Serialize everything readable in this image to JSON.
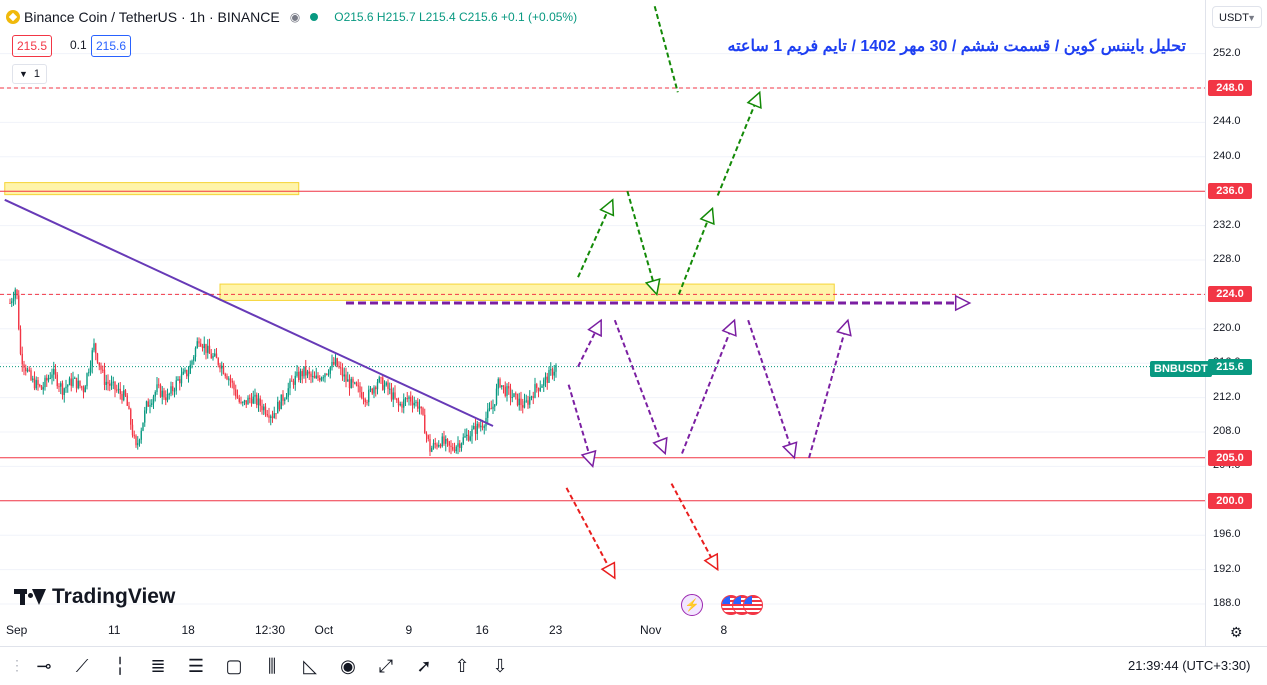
{
  "header": {
    "symbol": "Binance Coin / TetherUS · 1h · BINANCE",
    "ohlc": "O215.6 H215.7 L215.4 C215.6 +0.1 (+0.05%)",
    "sell_price": "215.5",
    "spread": "0.1",
    "buy_price": "215.6",
    "indicator_count": "1",
    "currency_button": "USDT"
  },
  "annotation_title": "تحلیل بایننس کوین / قسمت ششم / 30 مهر 1402 / تایم فریم 1 ساعته",
  "symbol_tag": "BNBUSDT",
  "branding": "TradingView",
  "clock": "21:39:44 (UTC+3:30)",
  "colors": {
    "up": "#089981",
    "down": "#f23645",
    "level_line": "#f23645",
    "zone": "#fff3a0",
    "trendline": "#673ab7",
    "scenario_bull": "#138a07",
    "scenario_main": "#7b1fa2",
    "scenario_bear": "#e91e1e"
  },
  "chart_data": {
    "type": "candlestick",
    "timeframe": "1h",
    "ylim": [
      186,
      254
    ],
    "y_ticks": [
      "252.0",
      "248.0",
      "244.0",
      "240.0",
      "236.0",
      "232.0",
      "228.0",
      "224.0",
      "220.0",
      "216.0",
      "212.0",
      "208.0",
      "204.0",
      "200.0",
      "196.0",
      "192.0",
      "188.0"
    ],
    "x_ticks": [
      "Sep",
      "11",
      "18",
      "12:30",
      "Oct",
      "9",
      "16",
      "23",
      "Nov",
      "8"
    ],
    "x_tick_days": [
      0,
      10,
      17,
      25,
      30,
      38,
      45,
      52,
      61,
      68
    ],
    "price_levels": [
      {
        "label": "248.0",
        "value": 248.0,
        "style": "dashed"
      },
      {
        "label": "236.0",
        "value": 236.0,
        "style": "solid"
      },
      {
        "label": "224.0",
        "value": 224.0,
        "style": "dashed"
      },
      {
        "label": "205.0",
        "value": 205.0,
        "style": "solid"
      },
      {
        "label": "200.0",
        "value": 200.0,
        "style": "solid"
      }
    ],
    "current_price": {
      "label": "215.6",
      "value": 215.6
    },
    "zones": [
      {
        "x0": -0.5,
        "x1": 27.5,
        "y0": 235.6,
        "y1": 237.0
      },
      {
        "x0": 20.0,
        "x1": 78.5,
        "y0": 223.3,
        "y1": 225.2
      }
    ],
    "trendline": {
      "x0": -0.5,
      "y0": 235.0,
      "x1": 46.0,
      "y1": 208.7
    },
    "close_path": [
      [
        0,
        223
      ],
      [
        0.6,
        225
      ],
      [
        1,
        217
      ],
      [
        2,
        214
      ],
      [
        3,
        213
      ],
      [
        4,
        215
      ],
      [
        5,
        213
      ],
      [
        6,
        214
      ],
      [
        7,
        213
      ],
      [
        8,
        218
      ],
      [
        9,
        214
      ],
      [
        10,
        213
      ],
      [
        11,
        212
      ],
      [
        12,
        206
      ],
      [
        13,
        211
      ],
      [
        14,
        213
      ],
      [
        15,
        212
      ],
      [
        16,
        214
      ],
      [
        17,
        215
      ],
      [
        18,
        219
      ],
      [
        19,
        217
      ],
      [
        20,
        216
      ],
      [
        21,
        214
      ],
      [
        22,
        211
      ],
      [
        23,
        212
      ],
      [
        24,
        211
      ],
      [
        25,
        210
      ],
      [
        26,
        212
      ],
      [
        27,
        214
      ],
      [
        28,
        215
      ],
      [
        29,
        214
      ],
      [
        30,
        215
      ],
      [
        31,
        216
      ],
      [
        32,
        214
      ],
      [
        33,
        213
      ],
      [
        34,
        212
      ],
      [
        35,
        214
      ],
      [
        36,
        213
      ],
      [
        37,
        211
      ],
      [
        38,
        212
      ],
      [
        39,
        211
      ],
      [
        40,
        206
      ],
      [
        41,
        207
      ],
      [
        42,
        206
      ],
      [
        43,
        207
      ],
      [
        44,
        208
      ],
      [
        45,
        209
      ],
      [
        46,
        211
      ],
      [
        46.6,
        214
      ],
      [
        47,
        213
      ],
      [
        48,
        212
      ],
      [
        49,
        211
      ],
      [
        50,
        213
      ],
      [
        51,
        214
      ],
      [
        52,
        215.6
      ]
    ],
    "scenarios": [
      {
        "color": "bull",
        "points": [
          [
            54.1,
            226
          ],
          [
            57.4,
            235
          ]
        ]
      },
      {
        "color": "bull",
        "points": [
          [
            58.8,
            236
          ],
          [
            61.6,
            224
          ]
        ]
      },
      {
        "color": "bull",
        "points": [
          [
            61.4,
            257.5
          ],
          [
            63.6,
            247.5
          ],
          [
            60.5,
            247.5
          ]
        ]
      },
      {
        "color": "bull",
        "points": [
          [
            63.7,
            224
          ],
          [
            66.9,
            234
          ]
        ]
      },
      {
        "color": "bull",
        "points": [
          [
            67.4,
            235.5
          ],
          [
            71.4,
            247.5
          ]
        ]
      },
      {
        "color": "main",
        "points": [
          [
            54.1,
            215.6
          ],
          [
            56.3,
            221
          ]
        ]
      },
      {
        "color": "main",
        "points": [
          [
            57.6,
            221
          ],
          [
            62.4,
            205.5
          ]
        ]
      },
      {
        "color": "main",
        "points": [
          [
            64.0,
            205.5
          ],
          [
            69.0,
            221
          ]
        ]
      },
      {
        "color": "main",
        "points": [
          [
            70.3,
            221
          ],
          [
            74.7,
            205
          ]
        ]
      },
      {
        "color": "main",
        "points": [
          [
            76.1,
            205
          ],
          [
            79.8,
            221
          ]
        ]
      },
      {
        "color": "main",
        "points": [
          [
            53.2,
            213.5
          ],
          [
            55.5,
            204
          ]
        ]
      },
      {
        "color": "main",
        "points": [
          [
            32.0,
            223
          ],
          [
            91.4,
            223
          ]
        ]
      },
      {
        "color": "bear",
        "points": [
          [
            53.0,
            201.5
          ],
          [
            57.6,
            191
          ]
        ]
      },
      {
        "color": "bear",
        "points": [
          [
            63.0,
            202
          ],
          [
            67.4,
            192
          ]
        ]
      }
    ]
  }
}
